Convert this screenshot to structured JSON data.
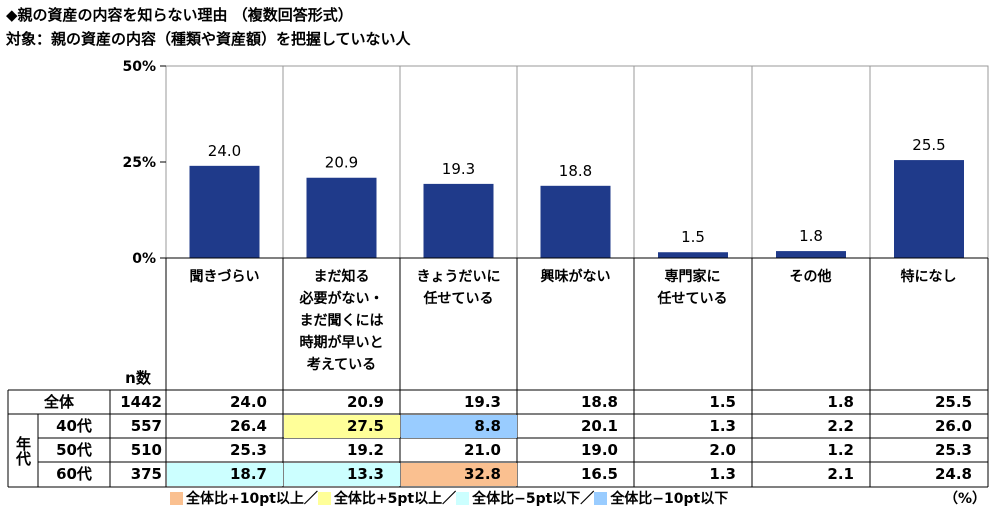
{
  "title": "◆親の資産の内容を知らない理由 （複数回答形式）",
  "subtitle": "対象：親の資産の内容（種類や資産額）を把握していない人",
  "n_label": "n数",
  "unit": "（%）",
  "chart_data": {
    "type": "bar",
    "categories": [
      "聞きづらい",
      "まだ知る必要がない・まだ聞くには時期が早いと考えている",
      "きょうだいに任せている",
      "興味がない",
      "専門家に任せている",
      "その他",
      "特になし"
    ],
    "category_lines": [
      [
        "聞きづらい"
      ],
      [
        "まだ知る",
        "必要がない・",
        "まだ聞くには",
        "時期が早いと",
        "考えている"
      ],
      [
        "きょうだいに",
        "任せている"
      ],
      [
        "興味がない"
      ],
      [
        "専門家に",
        "任せている"
      ],
      [
        "その他"
      ],
      [
        "特になし"
      ]
    ],
    "values": [
      24.0,
      20.9,
      19.3,
      18.8,
      1.5,
      1.8,
      25.5
    ],
    "value_labels": [
      "24.0",
      "20.9",
      "19.3",
      "18.8",
      "1.5",
      "1.8",
      "25.5"
    ],
    "ylim": [
      0,
      50
    ],
    "yticks": [
      "0%",
      "25%",
      "50%"
    ],
    "ytick_values": [
      0,
      25,
      50
    ],
    "bar_color": "#1F3A8A"
  },
  "table": {
    "group_label": "年代",
    "rows": [
      {
        "label": "全体",
        "n": "1442",
        "values": [
          "24.0",
          "20.9",
          "19.3",
          "18.8",
          "1.5",
          "1.8",
          "25.5"
        ],
        "hl": [
          null,
          null,
          null,
          null,
          null,
          null,
          null
        ]
      },
      {
        "label": "40代",
        "n": "557",
        "values": [
          "26.4",
          "27.5",
          "8.8",
          "20.1",
          "1.3",
          "2.2",
          "26.0"
        ],
        "hl": [
          null,
          "p5",
          "m10",
          null,
          null,
          null,
          null
        ]
      },
      {
        "label": "50代",
        "n": "510",
        "values": [
          "25.3",
          "19.2",
          "21.0",
          "19.0",
          "2.0",
          "1.2",
          "25.3"
        ],
        "hl": [
          null,
          null,
          null,
          null,
          null,
          null,
          null
        ]
      },
      {
        "label": "60代",
        "n": "375",
        "values": [
          "18.7",
          "13.3",
          "32.8",
          "16.5",
          "1.3",
          "2.1",
          "24.8"
        ],
        "hl": [
          "m5",
          "m5",
          "p10",
          null,
          null,
          null,
          null
        ]
      }
    ]
  },
  "legend": [
    {
      "key": "p10",
      "label": "全体比+10pt以上／",
      "color": "#FAC090"
    },
    {
      "key": "p5",
      "label": "全体比+5pt以上／",
      "color": "#FFFF99"
    },
    {
      "key": "m5",
      "label": "全体比−5pt以下／",
      "color": "#CCFFFF"
    },
    {
      "key": "m10",
      "label": "全体比−10pt以下",
      "color": "#99CCFF"
    }
  ]
}
